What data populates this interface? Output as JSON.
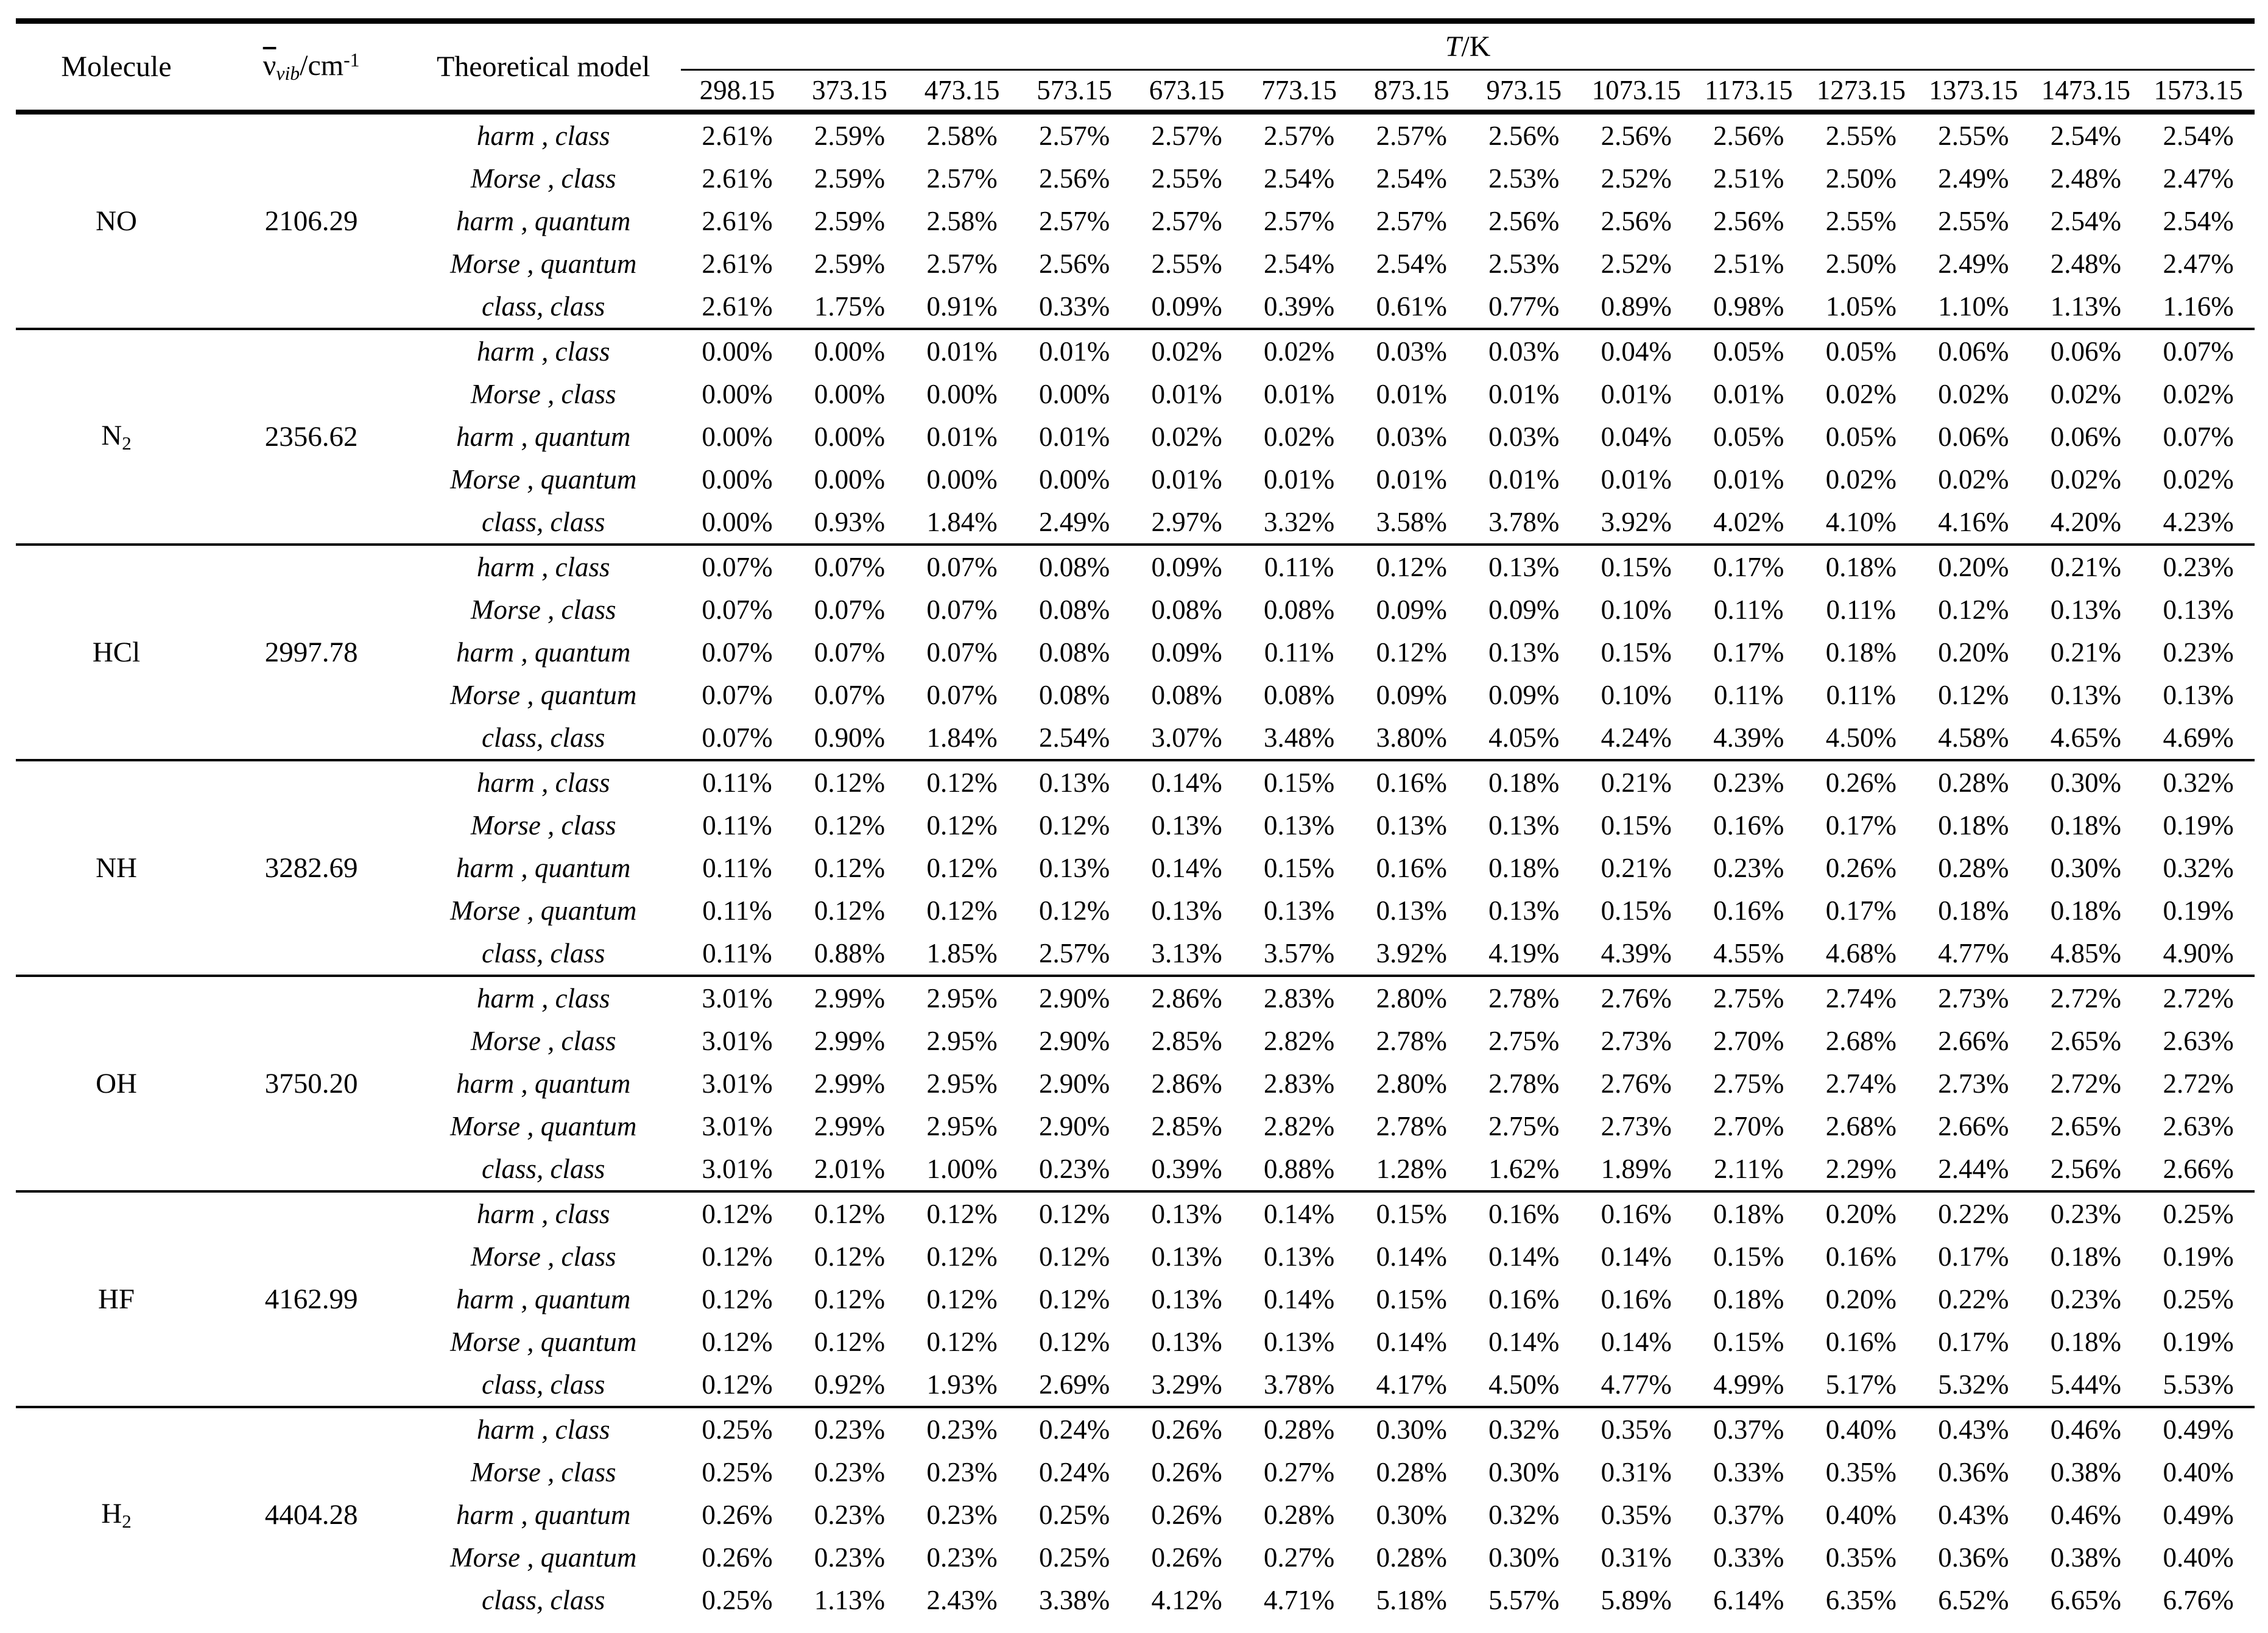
{
  "header": {
    "molecule": "Molecule",
    "freq": {
      "nu": "ν",
      "sub": "vib",
      "unit": "/cm",
      "sup": "-1"
    },
    "model": "Theoretical model",
    "temp_group": {
      "t": "T",
      "rest": "/K"
    },
    "temps": [
      "298.15",
      "373.15",
      "473.15",
      "573.15",
      "673.15",
      "773.15",
      "873.15",
      "973.15",
      "1073.15",
      "1173.15",
      "1273.15",
      "1373.15",
      "1473.15",
      "1573.15"
    ]
  },
  "models": [
    "harm , class",
    "Morse , class",
    "harm , quantum",
    "Morse , quantum",
    "class, class"
  ],
  "molecules": [
    {
      "name": "NO",
      "sub": "",
      "freq": "2106.29",
      "rows": [
        [
          "2.61%",
          "2.59%",
          "2.58%",
          "2.57%",
          "2.57%",
          "2.57%",
          "2.57%",
          "2.56%",
          "2.56%",
          "2.56%",
          "2.55%",
          "2.55%",
          "2.54%",
          "2.54%"
        ],
        [
          "2.61%",
          "2.59%",
          "2.57%",
          "2.56%",
          "2.55%",
          "2.54%",
          "2.54%",
          "2.53%",
          "2.52%",
          "2.51%",
          "2.50%",
          "2.49%",
          "2.48%",
          "2.47%"
        ],
        [
          "2.61%",
          "2.59%",
          "2.58%",
          "2.57%",
          "2.57%",
          "2.57%",
          "2.57%",
          "2.56%",
          "2.56%",
          "2.56%",
          "2.55%",
          "2.55%",
          "2.54%",
          "2.54%"
        ],
        [
          "2.61%",
          "2.59%",
          "2.57%",
          "2.56%",
          "2.55%",
          "2.54%",
          "2.54%",
          "2.53%",
          "2.52%",
          "2.51%",
          "2.50%",
          "2.49%",
          "2.48%",
          "2.47%"
        ],
        [
          "2.61%",
          "1.75%",
          "0.91%",
          "0.33%",
          "0.09%",
          "0.39%",
          "0.61%",
          "0.77%",
          "0.89%",
          "0.98%",
          "1.05%",
          "1.10%",
          "1.13%",
          "1.16%"
        ]
      ]
    },
    {
      "name": "N",
      "sub": "2",
      "freq": "2356.62",
      "rows": [
        [
          "0.00%",
          "0.00%",
          "0.01%",
          "0.01%",
          "0.02%",
          "0.02%",
          "0.03%",
          "0.03%",
          "0.04%",
          "0.05%",
          "0.05%",
          "0.06%",
          "0.06%",
          "0.07%"
        ],
        [
          "0.00%",
          "0.00%",
          "0.00%",
          "0.00%",
          "0.01%",
          "0.01%",
          "0.01%",
          "0.01%",
          "0.01%",
          "0.01%",
          "0.02%",
          "0.02%",
          "0.02%",
          "0.02%"
        ],
        [
          "0.00%",
          "0.00%",
          "0.01%",
          "0.01%",
          "0.02%",
          "0.02%",
          "0.03%",
          "0.03%",
          "0.04%",
          "0.05%",
          "0.05%",
          "0.06%",
          "0.06%",
          "0.07%"
        ],
        [
          "0.00%",
          "0.00%",
          "0.00%",
          "0.00%",
          "0.01%",
          "0.01%",
          "0.01%",
          "0.01%",
          "0.01%",
          "0.01%",
          "0.02%",
          "0.02%",
          "0.02%",
          "0.02%"
        ],
        [
          "0.00%",
          "0.93%",
          "1.84%",
          "2.49%",
          "2.97%",
          "3.32%",
          "3.58%",
          "3.78%",
          "3.92%",
          "4.02%",
          "4.10%",
          "4.16%",
          "4.20%",
          "4.23%"
        ]
      ]
    },
    {
      "name": "HCl",
      "sub": "",
      "freq": "2997.78",
      "rows": [
        [
          "0.07%",
          "0.07%",
          "0.07%",
          "0.08%",
          "0.09%",
          "0.11%",
          "0.12%",
          "0.13%",
          "0.15%",
          "0.17%",
          "0.18%",
          "0.20%",
          "0.21%",
          "0.23%"
        ],
        [
          "0.07%",
          "0.07%",
          "0.07%",
          "0.08%",
          "0.08%",
          "0.08%",
          "0.09%",
          "0.09%",
          "0.10%",
          "0.11%",
          "0.11%",
          "0.12%",
          "0.13%",
          "0.13%"
        ],
        [
          "0.07%",
          "0.07%",
          "0.07%",
          "0.08%",
          "0.09%",
          "0.11%",
          "0.12%",
          "0.13%",
          "0.15%",
          "0.17%",
          "0.18%",
          "0.20%",
          "0.21%",
          "0.23%"
        ],
        [
          "0.07%",
          "0.07%",
          "0.07%",
          "0.08%",
          "0.08%",
          "0.08%",
          "0.09%",
          "0.09%",
          "0.10%",
          "0.11%",
          "0.11%",
          "0.12%",
          "0.13%",
          "0.13%"
        ],
        [
          "0.07%",
          "0.90%",
          "1.84%",
          "2.54%",
          "3.07%",
          "3.48%",
          "3.80%",
          "4.05%",
          "4.24%",
          "4.39%",
          "4.50%",
          "4.58%",
          "4.65%",
          "4.69%"
        ]
      ]
    },
    {
      "name": "NH",
      "sub": "",
      "freq": "3282.69",
      "rows": [
        [
          "0.11%",
          "0.12%",
          "0.12%",
          "0.13%",
          "0.14%",
          "0.15%",
          "0.16%",
          "0.18%",
          "0.21%",
          "0.23%",
          "0.26%",
          "0.28%",
          "0.30%",
          "0.32%"
        ],
        [
          "0.11%",
          "0.12%",
          "0.12%",
          "0.12%",
          "0.13%",
          "0.13%",
          "0.13%",
          "0.13%",
          "0.15%",
          "0.16%",
          "0.17%",
          "0.18%",
          "0.18%",
          "0.19%"
        ],
        [
          "0.11%",
          "0.12%",
          "0.12%",
          "0.13%",
          "0.14%",
          "0.15%",
          "0.16%",
          "0.18%",
          "0.21%",
          "0.23%",
          "0.26%",
          "0.28%",
          "0.30%",
          "0.32%"
        ],
        [
          "0.11%",
          "0.12%",
          "0.12%",
          "0.12%",
          "0.13%",
          "0.13%",
          "0.13%",
          "0.13%",
          "0.15%",
          "0.16%",
          "0.17%",
          "0.18%",
          "0.18%",
          "0.19%"
        ],
        [
          "0.11%",
          "0.88%",
          "1.85%",
          "2.57%",
          "3.13%",
          "3.57%",
          "3.92%",
          "4.19%",
          "4.39%",
          "4.55%",
          "4.68%",
          "4.77%",
          "4.85%",
          "4.90%"
        ]
      ]
    },
    {
      "name": "OH",
      "sub": "",
      "freq": "3750.20",
      "rows": [
        [
          "3.01%",
          "2.99%",
          "2.95%",
          "2.90%",
          "2.86%",
          "2.83%",
          "2.80%",
          "2.78%",
          "2.76%",
          "2.75%",
          "2.74%",
          "2.73%",
          "2.72%",
          "2.72%"
        ],
        [
          "3.01%",
          "2.99%",
          "2.95%",
          "2.90%",
          "2.85%",
          "2.82%",
          "2.78%",
          "2.75%",
          "2.73%",
          "2.70%",
          "2.68%",
          "2.66%",
          "2.65%",
          "2.63%"
        ],
        [
          "3.01%",
          "2.99%",
          "2.95%",
          "2.90%",
          "2.86%",
          "2.83%",
          "2.80%",
          "2.78%",
          "2.76%",
          "2.75%",
          "2.74%",
          "2.73%",
          "2.72%",
          "2.72%"
        ],
        [
          "3.01%",
          "2.99%",
          "2.95%",
          "2.90%",
          "2.85%",
          "2.82%",
          "2.78%",
          "2.75%",
          "2.73%",
          "2.70%",
          "2.68%",
          "2.66%",
          "2.65%",
          "2.63%"
        ],
        [
          "3.01%",
          "2.01%",
          "1.00%",
          "0.23%",
          "0.39%",
          "0.88%",
          "1.28%",
          "1.62%",
          "1.89%",
          "2.11%",
          "2.29%",
          "2.44%",
          "2.56%",
          "2.66%"
        ]
      ]
    },
    {
      "name": "HF",
      "sub": "",
      "freq": "4162.99",
      "rows": [
        [
          "0.12%",
          "0.12%",
          "0.12%",
          "0.12%",
          "0.13%",
          "0.14%",
          "0.15%",
          "0.16%",
          "0.16%",
          "0.18%",
          "0.20%",
          "0.22%",
          "0.23%",
          "0.25%"
        ],
        [
          "0.12%",
          "0.12%",
          "0.12%",
          "0.12%",
          "0.13%",
          "0.13%",
          "0.14%",
          "0.14%",
          "0.14%",
          "0.15%",
          "0.16%",
          "0.17%",
          "0.18%",
          "0.19%"
        ],
        [
          "0.12%",
          "0.12%",
          "0.12%",
          "0.12%",
          "0.13%",
          "0.14%",
          "0.15%",
          "0.16%",
          "0.16%",
          "0.18%",
          "0.20%",
          "0.22%",
          "0.23%",
          "0.25%"
        ],
        [
          "0.12%",
          "0.12%",
          "0.12%",
          "0.12%",
          "0.13%",
          "0.13%",
          "0.14%",
          "0.14%",
          "0.14%",
          "0.15%",
          "0.16%",
          "0.17%",
          "0.18%",
          "0.19%"
        ],
        [
          "0.12%",
          "0.92%",
          "1.93%",
          "2.69%",
          "3.29%",
          "3.78%",
          "4.17%",
          "4.50%",
          "4.77%",
          "4.99%",
          "5.17%",
          "5.32%",
          "5.44%",
          "5.53%"
        ]
      ]
    },
    {
      "name": "H",
      "sub": "2",
      "freq": "4404.28",
      "rows": [
        [
          "0.25%",
          "0.23%",
          "0.23%",
          "0.24%",
          "0.26%",
          "0.28%",
          "0.30%",
          "0.32%",
          "0.35%",
          "0.37%",
          "0.40%",
          "0.43%",
          "0.46%",
          "0.49%"
        ],
        [
          "0.25%",
          "0.23%",
          "0.23%",
          "0.24%",
          "0.26%",
          "0.27%",
          "0.28%",
          "0.30%",
          "0.31%",
          "0.33%",
          "0.35%",
          "0.36%",
          "0.38%",
          "0.40%"
        ],
        [
          "0.26%",
          "0.23%",
          "0.23%",
          "0.25%",
          "0.26%",
          "0.28%",
          "0.30%",
          "0.32%",
          "0.35%",
          "0.37%",
          "0.40%",
          "0.43%",
          "0.46%",
          "0.49%"
        ],
        [
          "0.26%",
          "0.23%",
          "0.23%",
          "0.25%",
          "0.26%",
          "0.27%",
          "0.28%",
          "0.30%",
          "0.31%",
          "0.33%",
          "0.35%",
          "0.36%",
          "0.38%",
          "0.40%"
        ],
        [
          "0.25%",
          "1.13%",
          "2.43%",
          "3.38%",
          "4.12%",
          "4.71%",
          "5.18%",
          "5.57%",
          "5.89%",
          "6.14%",
          "6.35%",
          "6.52%",
          "6.65%",
          "6.76%"
        ]
      ]
    }
  ]
}
